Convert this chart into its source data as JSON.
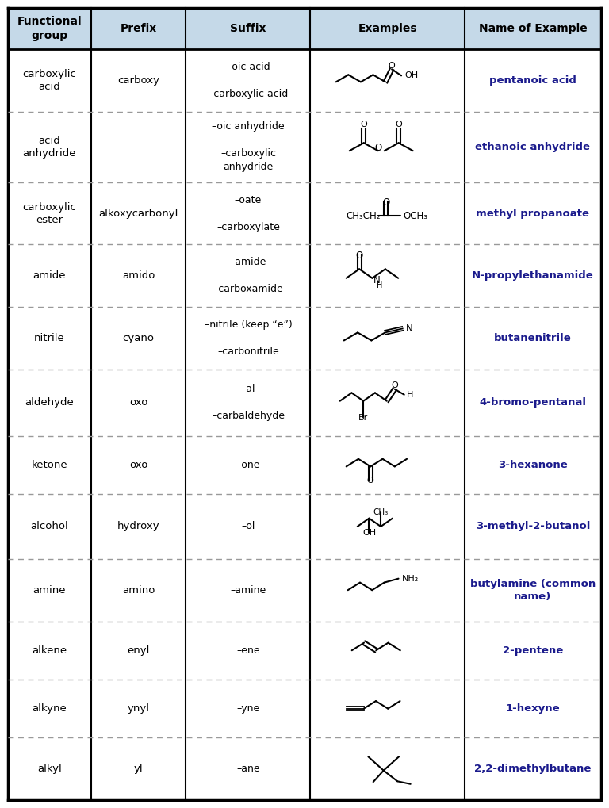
{
  "header_bg": "#c5d9e8",
  "name_color": "#1a1a8c",
  "headers": [
    "Functional\ngroup",
    "Prefix",
    "Suffix",
    "Examples",
    "Name of Example"
  ],
  "rows": [
    {
      "group": "carboxylic\nacid",
      "prefix": "carboxy",
      "suffix": "–oic acid\n\n–carboxylic acid",
      "example_key": "carboxylic_acid",
      "name": "pentanoic acid"
    },
    {
      "group": "acid\nanhydride",
      "prefix": "–",
      "suffix": "–oic anhydride\n\n–carboxylic\nanhydride",
      "example_key": "acid_anhydride",
      "name": "ethanoic anhydride"
    },
    {
      "group": "carboxylic\nester",
      "prefix": "alkoxycarbonyl",
      "suffix": "–oate\n\n–carboxylate",
      "example_key": "ester",
      "name": "methyl propanoate"
    },
    {
      "group": "amide",
      "prefix": "amido",
      "suffix": "–amide\n\n–carboxamide",
      "example_key": "amide",
      "name": "N-propylethanamide"
    },
    {
      "group": "nitrile",
      "prefix": "cyano",
      "suffix": "–nitrile (keep “e”)\n\n–carbonitrile",
      "example_key": "nitrile",
      "name": "butanenitrile"
    },
    {
      "group": "aldehyde",
      "prefix": "oxo",
      "suffix": "–al\n\n–carbaldehyde",
      "example_key": "aldehyde",
      "name": "4-bromo-pentanal"
    },
    {
      "group": "ketone",
      "prefix": "oxo",
      "suffix": "–one",
      "example_key": "ketone",
      "name": "3-hexanone"
    },
    {
      "group": "alcohol",
      "prefix": "hydroxy",
      "suffix": "–ol",
      "example_key": "alcohol",
      "name": "3-methyl-2-butanol"
    },
    {
      "group": "amine",
      "prefix": "amino",
      "suffix": "–amine",
      "example_key": "amine",
      "name": "butylamine (common\nname)"
    },
    {
      "group": "alkene",
      "prefix": "enyl",
      "suffix": "–ene",
      "example_key": "alkene",
      "name": "2-pentene"
    },
    {
      "group": "alkyne",
      "prefix": "ynyl",
      "suffix": "–yne",
      "example_key": "alkyne",
      "name": "1-hexyne"
    },
    {
      "group": "alkyl",
      "prefix": "yl",
      "suffix": "–ane",
      "example_key": "alkyl",
      "name": "2,2-dimethylbutane"
    }
  ]
}
